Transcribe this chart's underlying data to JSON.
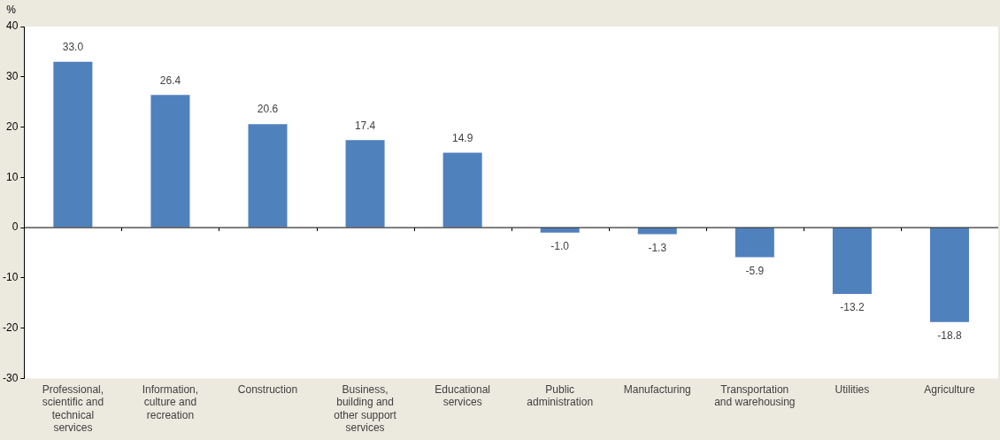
{
  "chart_data": {
    "type": "bar",
    "ylabel": "%",
    "categories": [
      "Professional, scientific and technical services",
      "Information, culture and recreation",
      "Construction",
      "Business, building and other support services",
      "Educational services",
      "Public administration",
      "Manufacturing",
      "Transportation and warehousing",
      "Utilities",
      "Agriculture"
    ],
    "values": [
      33.0,
      26.4,
      20.6,
      17.4,
      14.9,
      -1.0,
      -1.3,
      -5.9,
      -13.2,
      -18.8
    ],
    "value_labels": [
      "33.0",
      "26.4",
      "20.6",
      "17.4",
      "14.9",
      "-1.0",
      "-1.3",
      "-5.9",
      "-13.2",
      "-18.8"
    ],
    "color": "#4f81bd",
    "ylim": [
      -30,
      40
    ],
    "yticks": [
      -30,
      -20,
      -10,
      0,
      10,
      20,
      30,
      40
    ],
    "legend": false
  }
}
